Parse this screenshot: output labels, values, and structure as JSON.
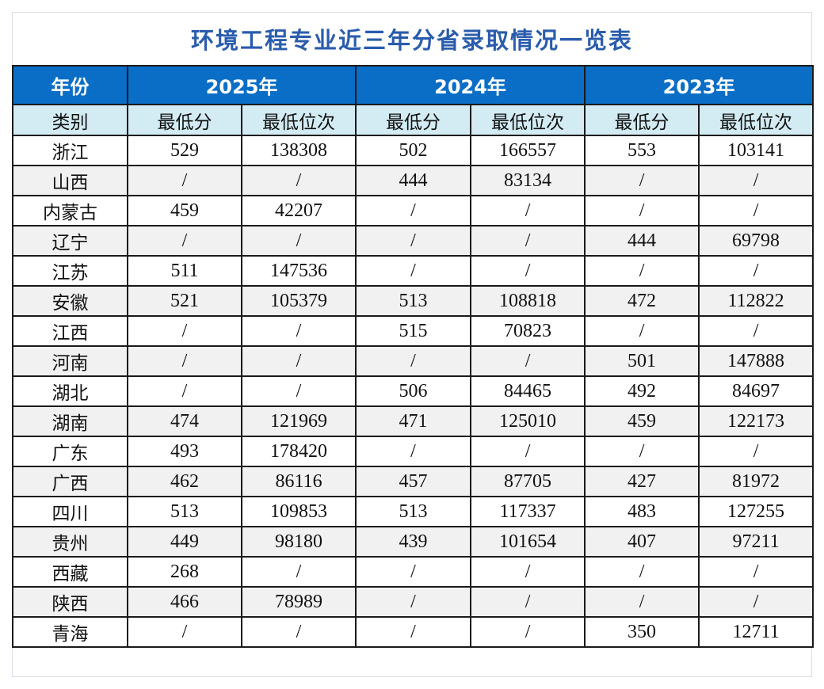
{
  "title": "环境工程专业近三年分省录取情况一览表",
  "header": {
    "corner_top": "年份",
    "corner_bottom": "类别",
    "years": [
      "2025年",
      "2024年",
      "2023年"
    ],
    "sub": [
      "最低分",
      "最低位次"
    ]
  },
  "rows": [
    {
      "prov": "浙江",
      "v": [
        "529",
        "138308",
        "502",
        "166557",
        "553",
        "103141"
      ]
    },
    {
      "prov": "山西",
      "v": [
        "/",
        "/",
        "444",
        "83134",
        "/",
        "/"
      ]
    },
    {
      "prov": "内蒙古",
      "v": [
        "459",
        "42207",
        "/",
        "/",
        "/",
        "/"
      ]
    },
    {
      "prov": "辽宁",
      "v": [
        "/",
        "/",
        "/",
        "/",
        "444",
        "69798"
      ]
    },
    {
      "prov": "江苏",
      "v": [
        "511",
        "147536",
        "/",
        "/",
        "/",
        "/"
      ]
    },
    {
      "prov": "安徽",
      "v": [
        "521",
        "105379",
        "513",
        "108818",
        "472",
        "112822"
      ]
    },
    {
      "prov": "江西",
      "v": [
        "/",
        "/",
        "515",
        "70823",
        "/",
        "/"
      ]
    },
    {
      "prov": "河南",
      "v": [
        "/",
        "/",
        "/",
        "/",
        "501",
        "147888"
      ]
    },
    {
      "prov": "湖北",
      "v": [
        "/",
        "/",
        "506",
        "84465",
        "492",
        "84697"
      ]
    },
    {
      "prov": "湖南",
      "v": [
        "474",
        "121969",
        "471",
        "125010",
        "459",
        "122173"
      ]
    },
    {
      "prov": "广东",
      "v": [
        "493",
        "178420",
        "/",
        "/",
        "/",
        "/"
      ]
    },
    {
      "prov": "广西",
      "v": [
        "462",
        "86116",
        "457",
        "87705",
        "427",
        "81972"
      ]
    },
    {
      "prov": "四川",
      "v": [
        "513",
        "109853",
        "513",
        "117337",
        "483",
        "127255"
      ]
    },
    {
      "prov": "贵州",
      "v": [
        "449",
        "98180",
        "439",
        "101654",
        "407",
        "97211"
      ]
    },
    {
      "prov": "西藏",
      "v": [
        "268",
        "/",
        "/",
        "/",
        "/",
        "/"
      ]
    },
    {
      "prov": "陕西",
      "v": [
        "466",
        "78989",
        "/",
        "/",
        "/",
        "/"
      ]
    },
    {
      "prov": "青海",
      "v": [
        "/",
        "/",
        "/",
        "/",
        "350",
        "12711"
      ]
    }
  ]
}
